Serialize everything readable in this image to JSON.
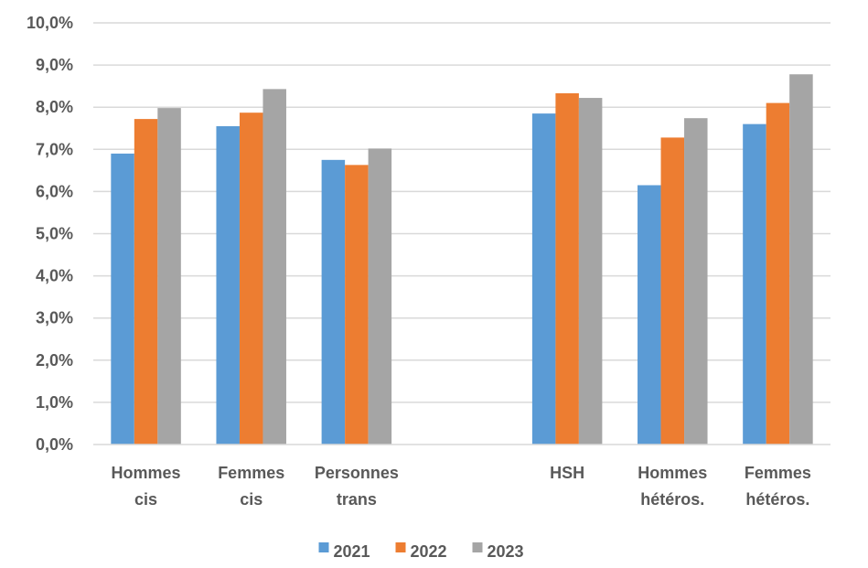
{
  "chart_data": {
    "type": "bar",
    "title": "",
    "xlabel": "",
    "ylabel": "",
    "ylim": [
      0,
      10
    ],
    "yticks": [
      "0,0%",
      "1,0%",
      "2,0%",
      "3,0%",
      "4,0%",
      "5,0%",
      "6,0%",
      "7,0%",
      "8,0%",
      "9,0%",
      "10,0%"
    ],
    "grid": true,
    "legend_position": "bottom",
    "categories": [
      [
        "Hommes",
        "cis"
      ],
      [
        "Femmes",
        "cis"
      ],
      [
        "Personnes",
        "trans"
      ],
      [
        "",
        ""
      ],
      [
        "HSH",
        ""
      ],
      [
        "Hommes",
        "hétéros."
      ],
      [
        "Femmes",
        "hétéros."
      ]
    ],
    "series": [
      {
        "name": "2021",
        "color": "#5B9BD5",
        "values": [
          6.9,
          7.55,
          6.75,
          null,
          7.85,
          6.15,
          7.6
        ]
      },
      {
        "name": "2022",
        "color": "#ED7D31",
        "values": [
          7.72,
          7.87,
          6.63,
          null,
          8.33,
          7.28,
          8.1
        ]
      },
      {
        "name": "2023",
        "color": "#A5A5A5",
        "values": [
          7.98,
          8.43,
          7.02,
          null,
          8.22,
          7.74,
          8.78
        ]
      }
    ]
  }
}
